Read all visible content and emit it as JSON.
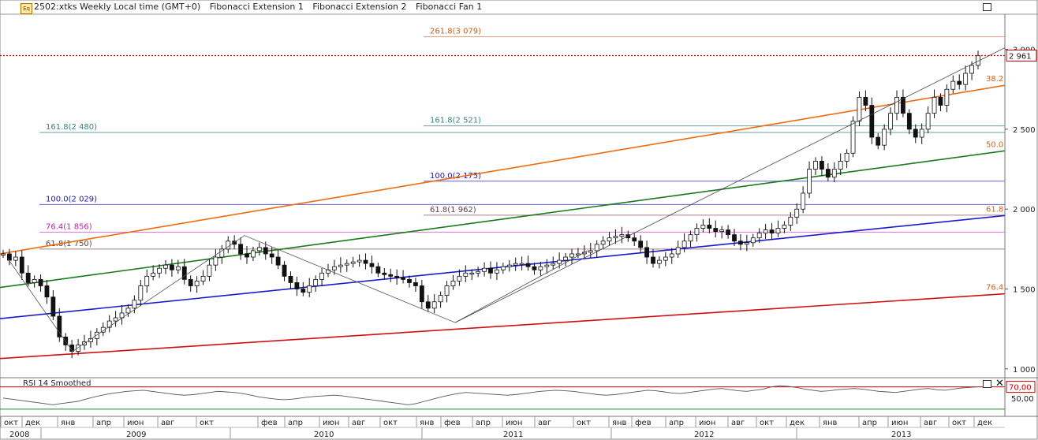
{
  "header": {
    "symbol": "2502:xtks Weekly Local time (GMT+0)",
    "indicators": [
      "Fibonacci Extension 1",
      "Fibonacci Extension 2",
      "Fibonacci Fan 1"
    ],
    "icon": "eq-icon"
  },
  "price_axis": {
    "ticks": [
      "3 000",
      "2 500",
      "2 000",
      "1 500",
      "1 000"
    ],
    "last_price_label": "2 961",
    "last_price_color": "#cc0000"
  },
  "fib_labels": [
    {
      "text": "261.8(3 079)",
      "color": "#c06020"
    },
    {
      "text": "161.8(2 521)",
      "color": "#3a8080"
    },
    {
      "text": "161.8(2 480)",
      "color": "#3a8080"
    },
    {
      "text": "100.0(2 175)",
      "color": "#1a1aa0"
    },
    {
      "text": "100.0(2 029)",
      "color": "#1a1aa0"
    },
    {
      "text": "61.8(1 962)",
      "color": "#604040"
    },
    {
      "text": "76.4(1 856)",
      "color": "#c020a0"
    },
    {
      "text": "61.8(1 750)",
      "color": "#604040"
    }
  ],
  "fan_labels": [
    {
      "text": "38.2",
      "color": "#e06010"
    },
    {
      "text": "50.0",
      "color": "#e06010"
    },
    {
      "text": "61.8",
      "color": "#e06010"
    },
    {
      "text": "76.4",
      "color": "#e06010"
    }
  ],
  "rsi": {
    "title": "RSI 14 Smoothed",
    "ticks": [
      "70,00",
      "50,00"
    ],
    "upper_color": "#cc0000",
    "lower_color": "#1a8a1a"
  },
  "time_axis": {
    "months": [
      "окт",
      "дек",
      "янв",
      "апр",
      "июн",
      "авг",
      "окт",
      "фев",
      "апр",
      "июн",
      "авг",
      "окт",
      "янв",
      "фев",
      "апр",
      "июн",
      "авг",
      "окт",
      "янв",
      "фев",
      "апр",
      "июн",
      "авг",
      "окт",
      "дек",
      "янв",
      "апр",
      "июн",
      "авг",
      "окт",
      "дек"
    ],
    "years": [
      "2008",
      "2009",
      "2010",
      "2011",
      "2012",
      "2013"
    ]
  },
  "chart_data": {
    "type": "candlestick",
    "interval": "weekly",
    "x_start": "2008-09",
    "x_end": "2013-12",
    "ylim": [
      950,
      3220
    ],
    "close_series": [
      1720,
      1680,
      1700,
      1600,
      1540,
      1560,
      1520,
      1450,
      1330,
      1200,
      1150,
      1110,
      1150,
      1170,
      1190,
      1230,
      1260,
      1300,
      1320,
      1350,
      1380,
      1430,
      1520,
      1580,
      1600,
      1630,
      1650,
      1620,
      1640,
      1560,
      1520,
      1550,
      1580,
      1650,
      1700,
      1750,
      1800,
      1780,
      1720,
      1700,
      1740,
      1760,
      1720,
      1700,
      1650,
      1580,
      1540,
      1500,
      1480,
      1520,
      1560,
      1600,
      1620,
      1640,
      1650,
      1660,
      1670,
      1680,
      1660,
      1640,
      1600,
      1590,
      1580,
      1570,
      1560,
      1540,
      1520,
      1420,
      1380,
      1420,
      1460,
      1520,
      1550,
      1580,
      1600,
      1600,
      1610,
      1630,
      1600,
      1620,
      1640,
      1650,
      1660,
      1660,
      1640,
      1620,
      1640,
      1650,
      1660,
      1680,
      1700,
      1720,
      1720,
      1730,
      1740,
      1780,
      1800,
      1820,
      1830,
      1840,
      1820,
      1800,
      1760,
      1700,
      1660,
      1680,
      1700,
      1720,
      1760,
      1800,
      1840,
      1880,
      1900,
      1880,
      1860,
      1870,
      1840,
      1800,
      1780,
      1790,
      1820,
      1850,
      1870,
      1850,
      1880,
      1900,
      1950,
      2000,
      2100,
      2250,
      2300,
      2250,
      2200,
      2250,
      2300,
      2350,
      2550,
      2700,
      2650,
      2450,
      2400,
      2500,
      2600,
      2700,
      2600,
      2500,
      2450,
      2500,
      2600,
      2700,
      2650,
      2750,
      2800,
      2780,
      2850,
      2900,
      2961
    ],
    "rsi": [
      50,
      48,
      46,
      44,
      42,
      40,
      38,
      40,
      42,
      44,
      48,
      52,
      55,
      58,
      60,
      62,
      63,
      64,
      62,
      60,
      58,
      56,
      55,
      56,
      58,
      60,
      62,
      61,
      60,
      58,
      55,
      52,
      50,
      48,
      47,
      48,
      50,
      52,
      53,
      54,
      55,
      54,
      52,
      50,
      48,
      46,
      44,
      42,
      40,
      38,
      40,
      44,
      48,
      52,
      55,
      58,
      60,
      59,
      58,
      57,
      56,
      55,
      56,
      58,
      60,
      62,
      63,
      64,
      63,
      62,
      60,
      58,
      56,
      55,
      56,
      58,
      60,
      62,
      64,
      63,
      61,
      59,
      58,
      60,
      62,
      64,
      66,
      67,
      65,
      63,
      62,
      64,
      66,
      70,
      72,
      71,
      69,
      66,
      64,
      62,
      63,
      65,
      66,
      67,
      66,
      64,
      62,
      61,
      60,
      62,
      64,
      66,
      67,
      65,
      64,
      66,
      68,
      69,
      70
    ],
    "fib_levels": [
      {
        "label": "261.8",
        "value": 3079
      },
      {
        "label": "161.8",
        "value": 2521
      },
      {
        "label": "161.8",
        "value": 2480
      },
      {
        "label": "100.0",
        "value": 2175
      },
      {
        "label": "100.0",
        "value": 2029
      },
      {
        "label": "61.8",
        "value": 1962
      },
      {
        "label": "76.4",
        "value": 1856
      },
      {
        "label": "61.8",
        "value": 1750
      }
    ],
    "fan_lines": [
      {
        "label": "38.2",
        "start_value": 1720,
        "end_value": 2775,
        "color": "#f06a10"
      },
      {
        "label": "50.0",
        "start_value": 1510,
        "end_value": 2365,
        "color": "#1a7a1a"
      },
      {
        "label": "61.8",
        "start_value": 1315,
        "end_value": 1960,
        "color": "#1a1ad0"
      },
      {
        "label": "76.4",
        "start_value": 1065,
        "end_value": 1470,
        "color": "#d01010"
      }
    ],
    "last_value": 2961
  }
}
